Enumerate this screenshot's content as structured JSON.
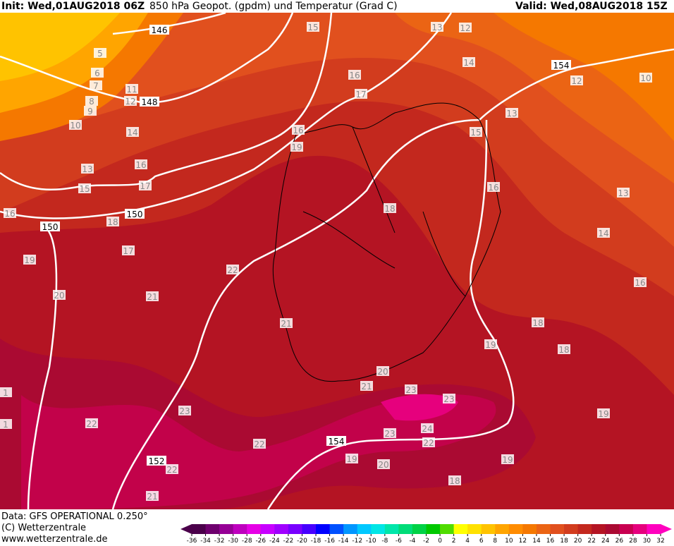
{
  "header": {
    "init": "Init: Wed,01AUG2018 06Z",
    "title": "850 hPa Geopot. (gpdm) und Temperatur (Grad C)",
    "valid": "Valid: Wed,08AUG2018 15Z"
  },
  "footer": {
    "data": "Data: GFS OPERATIONAL 0.250°",
    "copyright": "(C) Wetterzentrale",
    "url": "www.wetterzentrale.de"
  },
  "colorbar": {
    "ticks": [
      -36,
      -34,
      -32,
      -30,
      -28,
      -26,
      -24,
      -22,
      -20,
      -18,
      -16,
      -14,
      -12,
      -10,
      -8,
      -6,
      -4,
      -2,
      0,
      2,
      4,
      6,
      8,
      10,
      12,
      14,
      16,
      18,
      20,
      22,
      24,
      26,
      28,
      30,
      32
    ],
    "colors": [
      "#4b004b",
      "#6e006e",
      "#960096",
      "#be00be",
      "#e600e6",
      "#c800ff",
      "#a000ff",
      "#7800ff",
      "#4600ff",
      "#0000ff",
      "#0050ff",
      "#0096ff",
      "#00c8ff",
      "#00e6e6",
      "#00e6aa",
      "#00dc78",
      "#00d246",
      "#00c800",
      "#50dc00",
      "#ffff00",
      "#ffe100",
      "#ffc300",
      "#ffa500",
      "#ff8c00",
      "#f57800",
      "#eb6414",
      "#e1501e",
      "#d23c1e",
      "#c3281e",
      "#b41423",
      "#aa0a32",
      "#c80050",
      "#e6007d",
      "#ff00be"
    ]
  },
  "map": {
    "temperature_labels": [
      "5",
      "6",
      "7",
      "8",
      "9",
      "10",
      "11",
      "12",
      "14",
      "13",
      "15",
      "16",
      "17",
      "18",
      "19",
      "20",
      "21",
      "15",
      "16",
      "17",
      "16",
      "19",
      "13",
      "12",
      "14",
      "13",
      "15",
      "12",
      "10",
      "16",
      "13",
      "14",
      "16",
      "18",
      "18",
      "18",
      "19",
      "19",
      "19",
      "20",
      "21",
      "22",
      "23",
      "23",
      "24",
      "23",
      "22",
      "22",
      "23",
      "22",
      "22",
      "21",
      "19",
      "18",
      "21",
      "20",
      "1",
      "1",
      "16",
      "17"
    ],
    "geopotential_labels": [
      "146",
      "148",
      "150",
      "150",
      "152",
      "154",
      "154"
    ]
  }
}
